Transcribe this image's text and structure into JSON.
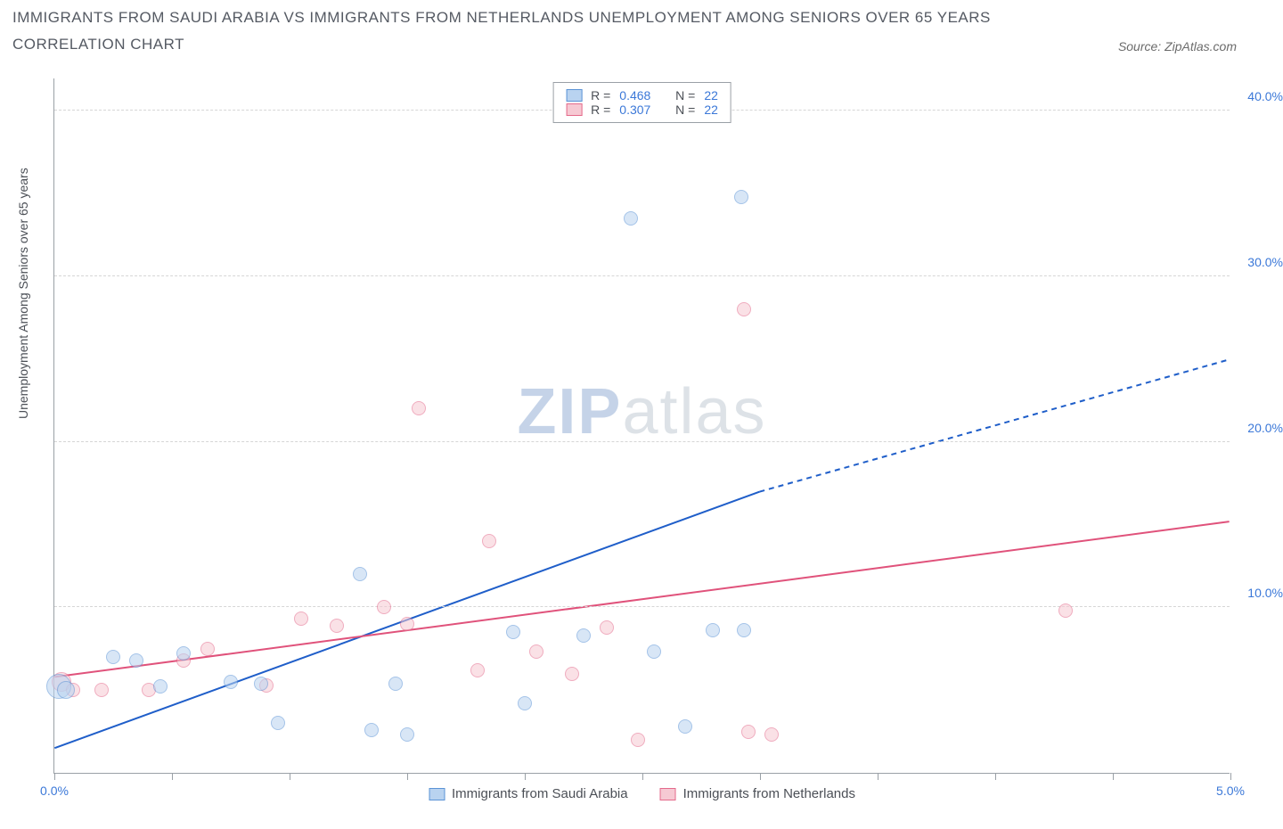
{
  "title_line1": "IMMIGRANTS FROM SAUDI ARABIA VS IMMIGRANTS FROM NETHERLANDS UNEMPLOYMENT AMONG SENIORS OVER 65 YEARS",
  "title_line2": "CORRELATION CHART",
  "source_label": "Source: ZipAtlas.com",
  "watermark_bold": "ZIP",
  "watermark_light": "atlas",
  "chart": {
    "type": "scatter",
    "background_color": "#ffffff",
    "axis_color": "#9aa0a6",
    "grid_color": "#d6d6d6",
    "xlim": [
      0.0,
      5.0
    ],
    "ylim": [
      0.0,
      42.0
    ],
    "xticks": [
      0.0,
      0.5,
      1.0,
      1.5,
      2.0,
      2.5,
      3.0,
      3.5,
      4.0,
      4.5,
      5.0
    ],
    "xtick_labels": {
      "0": "0.0%",
      "10": "5.0%"
    },
    "yticks": [
      10.0,
      20.0,
      30.0,
      40.0
    ],
    "ytick_labels": [
      "10.0%",
      "20.0%",
      "30.0%",
      "40.0%"
    ],
    "yaxis_title": "Unemployment Among Seniors over 65 years",
    "series": {
      "saudi": {
        "label": "Immigrants from Saudi Arabia",
        "fill": "#b9d3f0",
        "stroke": "#5b93d6",
        "fill_opacity": 0.55,
        "point_radius": 8,
        "line_color": "#1f5ec9",
        "line_width": 2,
        "trend": {
          "x1": 0.0,
          "y1": 1.5,
          "x2_solid": 3.0,
          "y2_solid": 17.0,
          "x2_dash": 5.0,
          "y2_dash": 25.0
        },
        "R": "0.468",
        "N": "22",
        "points": [
          {
            "x": 0.02,
            "y": 5.2,
            "r": 14
          },
          {
            "x": 0.05,
            "y": 5.0,
            "r": 10
          },
          {
            "x": 0.25,
            "y": 7.0
          },
          {
            "x": 0.35,
            "y": 6.8
          },
          {
            "x": 0.45,
            "y": 5.2
          },
          {
            "x": 0.55,
            "y": 7.2
          },
          {
            "x": 0.75,
            "y": 5.5
          },
          {
            "x": 0.88,
            "y": 5.4
          },
          {
            "x": 0.95,
            "y": 3.0
          },
          {
            "x": 1.3,
            "y": 12.0
          },
          {
            "x": 1.35,
            "y": 2.6
          },
          {
            "x": 1.45,
            "y": 5.4
          },
          {
            "x": 1.5,
            "y": 2.3
          },
          {
            "x": 1.95,
            "y": 8.5
          },
          {
            "x": 2.0,
            "y": 4.2
          },
          {
            "x": 2.25,
            "y": 8.3
          },
          {
            "x": 2.45,
            "y": 33.5
          },
          {
            "x": 2.55,
            "y": 7.3
          },
          {
            "x": 2.8,
            "y": 8.6
          },
          {
            "x": 2.68,
            "y": 2.8
          },
          {
            "x": 2.92,
            "y": 34.8
          },
          {
            "x": 2.93,
            "y": 8.6
          }
        ]
      },
      "netherlands": {
        "label": "Immigrants from Netherlands",
        "fill": "#f6c9d3",
        "stroke": "#e46a8b",
        "fill_opacity": 0.55,
        "point_radius": 8,
        "line_color": "#e0527b",
        "line_width": 2,
        "trend": {
          "x1": 0.0,
          "y1": 5.8,
          "x2_solid": 5.0,
          "y2_solid": 15.2,
          "x2_dash": 5.0,
          "y2_dash": 15.2
        },
        "R": "0.307",
        "N": "22",
        "points": [
          {
            "x": 0.03,
            "y": 5.5,
            "r": 11
          },
          {
            "x": 0.08,
            "y": 5.0
          },
          {
            "x": 0.2,
            "y": 5.0
          },
          {
            "x": 0.4,
            "y": 5.0
          },
          {
            "x": 0.55,
            "y": 6.8
          },
          {
            "x": 0.65,
            "y": 7.5
          },
          {
            "x": 0.9,
            "y": 5.3
          },
          {
            "x": 1.05,
            "y": 9.3
          },
          {
            "x": 1.2,
            "y": 8.9
          },
          {
            "x": 1.4,
            "y": 10.0
          },
          {
            "x": 1.5,
            "y": 9.0
          },
          {
            "x": 1.55,
            "y": 22.0
          },
          {
            "x": 1.8,
            "y": 6.2
          },
          {
            "x": 1.85,
            "y": 14.0
          },
          {
            "x": 2.05,
            "y": 7.3
          },
          {
            "x": 2.2,
            "y": 6.0
          },
          {
            "x": 2.35,
            "y": 8.8
          },
          {
            "x": 2.48,
            "y": 2.0
          },
          {
            "x": 2.95,
            "y": 2.5
          },
          {
            "x": 3.05,
            "y": 2.3
          },
          {
            "x": 2.93,
            "y": 28.0
          },
          {
            "x": 4.3,
            "y": 9.8
          }
        ]
      }
    },
    "legend_top": {
      "R_label": "R =",
      "N_label": "N ="
    }
  }
}
